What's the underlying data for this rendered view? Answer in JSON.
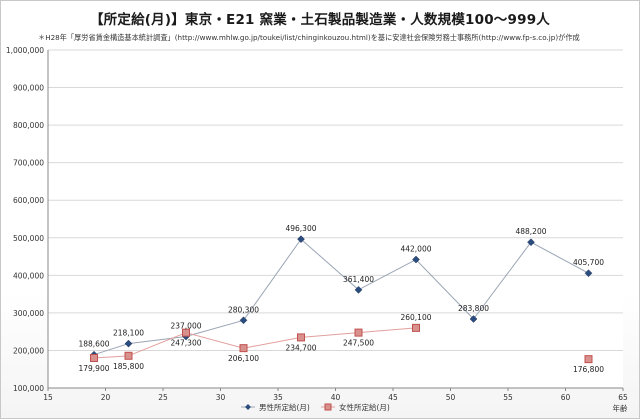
{
  "chart_data": {
    "type": "line",
    "title": "【所定給(月)】東京・E21 窯業・土石製品製造業・人数規模100〜999人",
    "subtitle": "＊H28年「厚労省賃金構造基本統計調査」(http://www.mhlw.go.jp/toukei/list/chinginkouzou.html)を基に安達社会保険労務士事務所(http://www.fp-s.co.jp)が作成",
    "xlabel": "年齢",
    "ylabel": "",
    "xlim": [
      15,
      65
    ],
    "ylim": [
      100000,
      1000000
    ],
    "x_ticks": [
      15,
      20,
      25,
      30,
      35,
      40,
      45,
      50,
      55,
      60,
      65
    ],
    "y_ticks": [
      100000,
      200000,
      300000,
      400000,
      500000,
      600000,
      700000,
      800000,
      900000,
      1000000
    ],
    "y_tick_labels": [
      "100,000",
      "200,000",
      "300,000",
      "400,000",
      "500,000",
      "600,000",
      "700,000",
      "800,000",
      "900,000",
      "1,000,000"
    ],
    "grid": "horizontal",
    "legend_position": "bottom",
    "series": [
      {
        "name": "男性所定給(月)",
        "color": "#2b4c7e",
        "marker": "diamond",
        "segments": [
          [
            {
              "x": 19,
              "y": 188600,
              "label": "188,600"
            },
            {
              "x": 22,
              "y": 218100,
              "label": "218,100"
            },
            {
              "x": 27,
              "y": 237000,
              "label": "237,000"
            },
            {
              "x": 32,
              "y": 280300,
              "label": "280,300"
            },
            {
              "x": 37,
              "y": 496300,
              "label": "496,300"
            },
            {
              "x": 42,
              "y": 361400,
              "label": "361,400"
            },
            {
              "x": 47,
              "y": 442000,
              "label": "442,000"
            },
            {
              "x": 52,
              "y": 283800,
              "label": "283,800"
            },
            {
              "x": 57,
              "y": 488200,
              "label": "488,200"
            },
            {
              "x": 62,
              "y": 405700,
              "label": "405,700"
            }
          ]
        ]
      },
      {
        "name": "女性所定給(月)",
        "color": "#c0504d",
        "marker": "square",
        "segments": [
          [
            {
              "x": 19,
              "y": 179900,
              "label": "179,900"
            },
            {
              "x": 22,
              "y": 185800,
              "label": "185,800"
            },
            {
              "x": 27,
              "y": 247300,
              "label": "247,300"
            },
            {
              "x": 32,
              "y": 206100,
              "label": "206,100"
            },
            {
              "x": 37,
              "y": 234700,
              "label": "234,700"
            },
            {
              "x": 42,
              "y": 247500,
              "label": "247,500"
            },
            {
              "x": 47,
              "y": 260100,
              "label": "260,100"
            }
          ],
          [
            {
              "x": 62,
              "y": 176800,
              "label": "176,800"
            }
          ]
        ]
      }
    ]
  }
}
